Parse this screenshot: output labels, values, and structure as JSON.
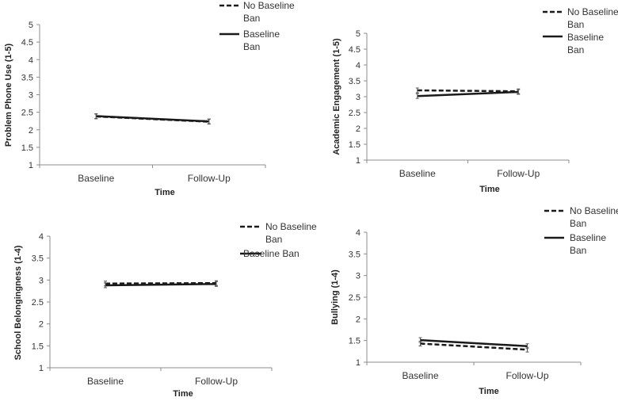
{
  "chart_data": [
    {
      "type": "line",
      "title": "",
      "xlabel": "Time",
      "ylabel": "Problem Phone Use (1-5)",
      "categories": [
        "Baseline",
        "Follow-Up"
      ],
      "ylim": [
        1,
        5
      ],
      "yticks": [
        "1",
        "1.5",
        "2",
        "2.5",
        "3",
        "3.5",
        "4",
        "4.5",
        "5"
      ],
      "grid": false,
      "legend_position": "top-right",
      "legend": [
        {
          "label_lines": [
            "No Baseline",
            "Ban"
          ],
          "style": "dashed"
        },
        {
          "label_lines": [
            "Baseline",
            "Ban"
          ],
          "style": "solid"
        }
      ],
      "series": [
        {
          "name": "No Baseline Ban",
          "style": "dashed",
          "values": [
            2.38,
            2.23
          ]
        },
        {
          "name": "Baseline Ban",
          "style": "solid",
          "values": [
            2.39,
            2.24
          ]
        }
      ]
    },
    {
      "type": "line",
      "title": "",
      "xlabel": "Time",
      "ylabel": "Academic Engagement (1-5)",
      "categories": [
        "Baseline",
        "Follow-Up"
      ],
      "ylim": [
        1,
        5
      ],
      "yticks": [
        "1",
        "1.5",
        "2",
        "2.5",
        "3",
        "3.5",
        "4",
        "4.5",
        "5"
      ],
      "grid": false,
      "legend_position": "top-right",
      "legend": [
        {
          "label_lines": [
            "No Baseline",
            "Ban"
          ],
          "style": "dashed"
        },
        {
          "label_lines": [
            "Baseline",
            "Ban"
          ],
          "style": "solid"
        }
      ],
      "series": [
        {
          "name": "No Baseline Ban",
          "style": "dashed",
          "values": [
            3.2,
            3.17
          ]
        },
        {
          "name": "Baseline Ban",
          "style": "solid",
          "values": [
            3.02,
            3.15
          ]
        }
      ]
    },
    {
      "type": "line",
      "title": "",
      "xlabel": "Time",
      "ylabel": "School Belongingness (1-4)",
      "categories": [
        "Baseline",
        "Follow-Up"
      ],
      "ylim": [
        1,
        4
      ],
      "yticks": [
        "1",
        "1.5",
        "2",
        "2.5",
        "3",
        "3.5",
        "4"
      ],
      "grid": false,
      "legend_position": "top-right",
      "legend": [
        {
          "label_lines": [
            "No Baseline",
            "Ban"
          ],
          "style": "dashed"
        },
        {
          "label_lines": [
            "Baseline Ban"
          ],
          "style": "solid"
        }
      ],
      "series": [
        {
          "name": "No Baseline Ban",
          "style": "dashed",
          "values": [
            2.92,
            2.93
          ]
        },
        {
          "name": "Baseline Ban",
          "style": "solid",
          "values": [
            2.88,
            2.91
          ]
        }
      ]
    },
    {
      "type": "line",
      "title": "",
      "xlabel": "Time",
      "ylabel": "Bullying (1-4)",
      "categories": [
        "Baseline",
        "Follow-Up"
      ],
      "ylim": [
        1,
        4
      ],
      "yticks": [
        "1",
        "1.5",
        "2",
        "2.5",
        "3",
        "3.5",
        "4"
      ],
      "grid": false,
      "legend_position": "top-right",
      "legend": [
        {
          "label_lines": [
            "No Baseline",
            "Ban"
          ],
          "style": "dashed"
        },
        {
          "label_lines": [
            "Baseline",
            "Ban"
          ],
          "style": "solid"
        }
      ],
      "series": [
        {
          "name": "No Baseline Ban",
          "style": "dashed",
          "values": [
            1.43,
            1.29
          ]
        },
        {
          "name": "Baseline Ban",
          "style": "solid",
          "values": [
            1.51,
            1.37
          ]
        }
      ]
    }
  ]
}
